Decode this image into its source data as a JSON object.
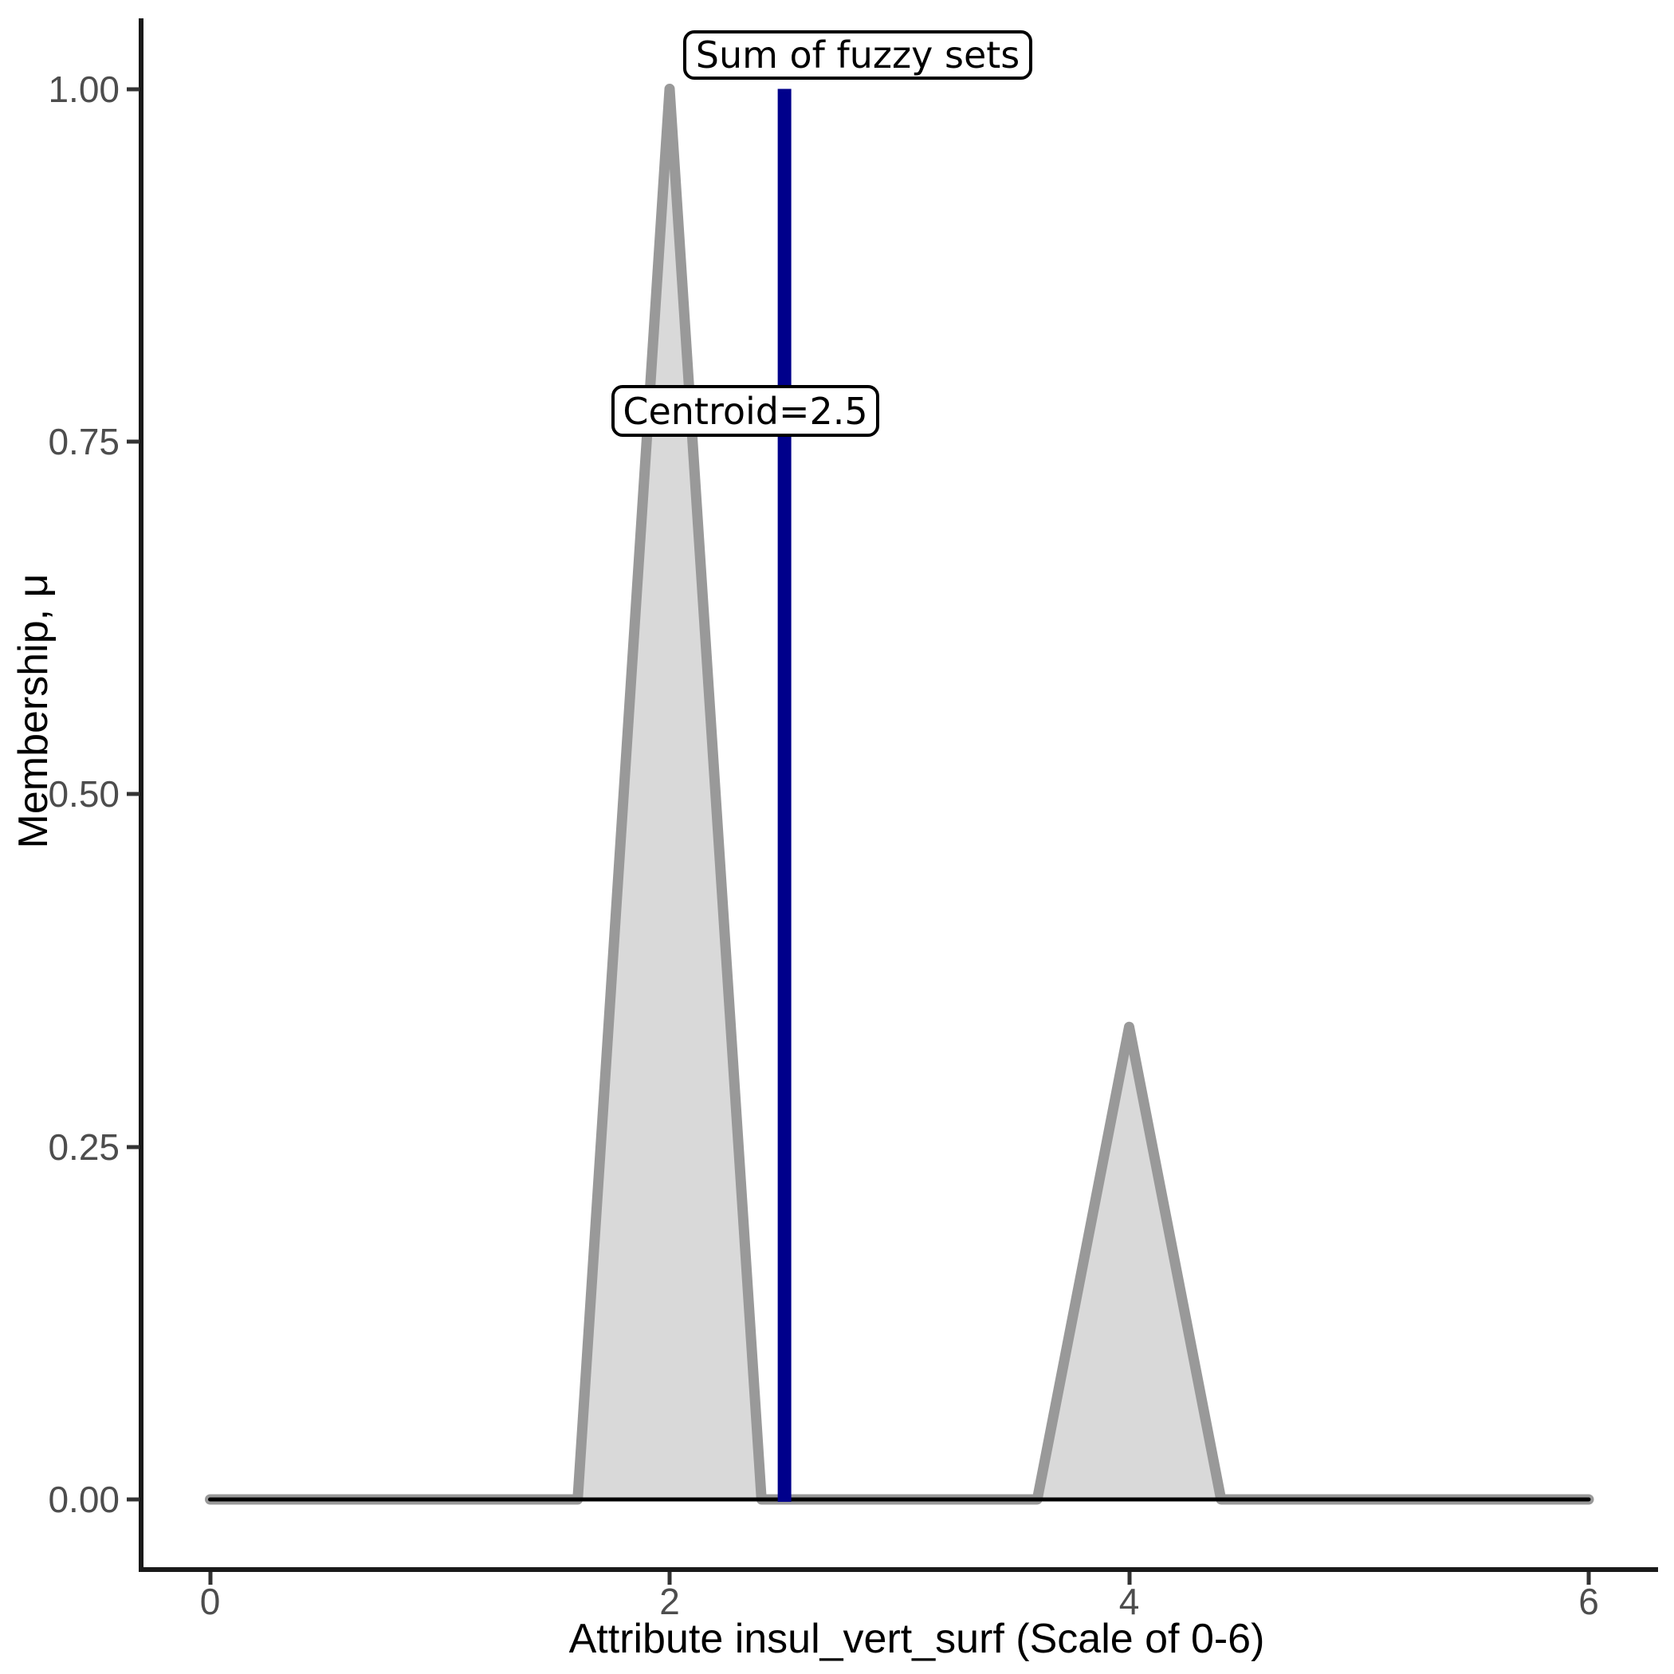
{
  "figure": {
    "y_axis": {
      "title": "Membership, μ",
      "ticks": [
        {
          "label": "1.00",
          "value": 1.0
        },
        {
          "label": "0.75",
          "value": 0.75
        },
        {
          "label": "0.50",
          "value": 0.5
        },
        {
          "label": "0.25",
          "value": 0.25
        },
        {
          "label": "0.00",
          "value": 0.0
        }
      ]
    },
    "x_axis": {
      "title": "Attribute insul_vert_surf (Scale of 0-6)",
      "ticks": [
        {
          "label": "0",
          "value": 0
        },
        {
          "label": "2",
          "value": 2
        },
        {
          "label": "4",
          "value": 4
        },
        {
          "label": "6",
          "value": 6
        }
      ]
    },
    "annotations": {
      "sum_label": "Sum of fuzzy sets",
      "centroid_label": "Centroid=2.5"
    }
  },
  "chart_data": {
    "type": "area",
    "title": "",
    "xlabel": "Attribute insul_vert_surf (Scale of 0-6)",
    "ylabel": "Membership, μ",
    "xlim": [
      0,
      6
    ],
    "ylim": [
      0,
      1
    ],
    "grid": false,
    "legend": false,
    "x_ticks": [
      0,
      2,
      4,
      6
    ],
    "y_ticks": [
      0.0,
      0.25,
      0.5,
      0.75,
      1.0
    ],
    "series": [
      {
        "name": "Sum of fuzzy sets",
        "kind": "area",
        "fill": "#D9D9D9",
        "stroke": "#999999",
        "stroke_width": 13,
        "points": [
          [
            0,
            0
          ],
          [
            1.6,
            0
          ],
          [
            2,
            1.0
          ],
          [
            2.4,
            0
          ],
          [
            3.6,
            0
          ],
          [
            4,
            0.335
          ],
          [
            4.4,
            0
          ],
          [
            6,
            0
          ]
        ]
      },
      {
        "name": "zero baseline",
        "kind": "line",
        "fill": null,
        "stroke": "#000000",
        "stroke_width": 5,
        "points": [
          [
            0,
            0
          ],
          [
            6,
            0
          ]
        ]
      }
    ],
    "fuzzy_sets": [
      {
        "peak_x": 2,
        "peak_mu": 1.0,
        "base": [
          1.6,
          2.4
        ]
      },
      {
        "peak_x": 4,
        "peak_mu": 0.335,
        "base": [
          3.6,
          4.4
        ]
      }
    ],
    "centroid": {
      "x": 2.5,
      "label": "Centroid=2.5",
      "color": "#00008B",
      "line_width": 17
    }
  },
  "colors": {
    "background": "#FFFFFF",
    "axis_line": "#1A1A1A",
    "tick_label": "#4D4D4D",
    "curve_stroke": "#999999",
    "curve_fill": "#D9D9D9",
    "centroid_line": "#00008B",
    "label_box_border": "#000000",
    "label_box_bg": "#FFFFFF"
  }
}
